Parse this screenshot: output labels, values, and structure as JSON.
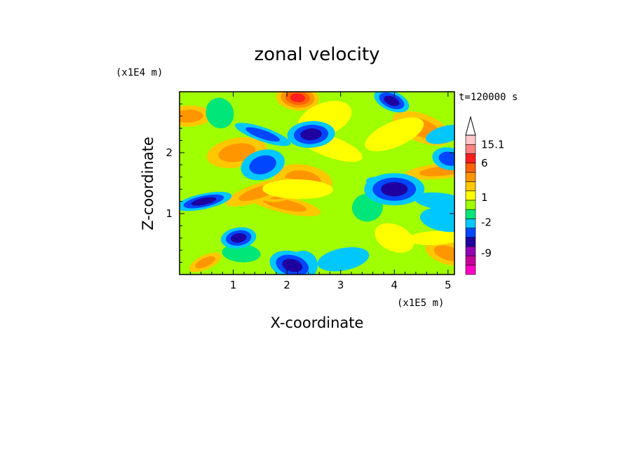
{
  "chart_data": {
    "type": "heatmap",
    "title": "zonal velocity",
    "xlabel": "X-coordinate",
    "ylabel": "Z-coordinate",
    "x_scale_label": "(x1E5 m)",
    "y_scale_label": "(x1E4 m)",
    "time_label": "t=120000 s",
    "xlim": [
      0,
      5.12
    ],
    "ylim": [
      0,
      3.0
    ],
    "x_ticks": [
      "1",
      "2",
      "3",
      "4",
      "5"
    ],
    "y_ticks": [
      "1",
      "2"
    ],
    "colorbar": {
      "colors": [
        "#ff00c8",
        "#c8009b",
        "#9600b4",
        "#1e00a0",
        "#0046ff",
        "#00c8ff",
        "#00e678",
        "#a0ff00",
        "#ffff00",
        "#ffc800",
        "#ff9600",
        "#ff6400",
        "#ff1e1e",
        "#ff8282",
        "#ffc8c8"
      ],
      "labeled_levels": [
        "15.1",
        "6",
        "1",
        "-2",
        "-9"
      ],
      "max_arrow": true
    },
    "features": [
      {
        "x": 0.48,
        "z": 0.2,
        "value": 3
      },
      {
        "x": 0.16,
        "z": 2.6,
        "value": 3
      },
      {
        "x": 4.52,
        "z": 2.4,
        "value": 3
      },
      {
        "x": 4.9,
        "z": 1.7,
        "value": 3
      },
      {
        "x": 5.0,
        "z": 0.35,
        "value": 3
      },
      {
        "x": 1.07,
        "z": 2.0,
        "value": 3
      },
      {
        "x": 1.95,
        "z": 1.15,
        "value": 3
      },
      {
        "x": 1.88,
        "z": 1.4,
        "value": 6
      },
      {
        "x": 2.3,
        "z": 1.55,
        "value": 3
      },
      {
        "x": 1.5,
        "z": 1.35,
        "value": 3
      },
      {
        "x": 2.2,
        "z": 2.9,
        "value": 6
      },
      {
        "x": 2.7,
        "z": 2.55,
        "value": 1
      },
      {
        "x": 2.2,
        "z": 1.4,
        "value": 1
      },
      {
        "x": 4.0,
        "z": 0.6,
        "value": 1
      },
      {
        "x": 4.75,
        "z": 0.6,
        "value": 1
      },
      {
        "x": 2.8,
        "z": 2.1,
        "value": 1
      },
      {
        "x": 3.5,
        "z": 1.1,
        "value": -1
      },
      {
        "x": 3.85,
        "z": 1.45,
        "value": -2
      },
      {
        "x": 3.05,
        "z": 0.25,
        "value": -2
      },
      {
        "x": 2.3,
        "z": 0.15,
        "value": -2
      },
      {
        "x": 4.95,
        "z": 2.3,
        "value": -2
      },
      {
        "x": 4.95,
        "z": 0.9,
        "value": -2
      },
      {
        "x": 0.75,
        "z": 2.65,
        "value": -1
      },
      {
        "x": 1.15,
        "z": 0.35,
        "value": -1
      },
      {
        "x": 4.0,
        "z": 2.3,
        "value": 1
      },
      {
        "x": 4.0,
        "z": 1.4,
        "value": -4
      },
      {
        "x": 3.95,
        "z": 2.85,
        "value": -4
      },
      {
        "x": 2.45,
        "z": 2.3,
        "value": -4
      },
      {
        "x": 1.55,
        "z": 2.3,
        "value": -3
      },
      {
        "x": 1.1,
        "z": 0.6,
        "value": -4
      },
      {
        "x": 2.1,
        "z": 0.15,
        "value": -4
      },
      {
        "x": 0.45,
        "z": 1.2,
        "value": -4
      },
      {
        "x": 5.02,
        "z": 1.9,
        "value": -3
      },
      {
        "x": 1.55,
        "z": 1.8,
        "value": -3
      },
      {
        "x": 4.88,
        "z": 1.2,
        "value": -2
      }
    ]
  }
}
